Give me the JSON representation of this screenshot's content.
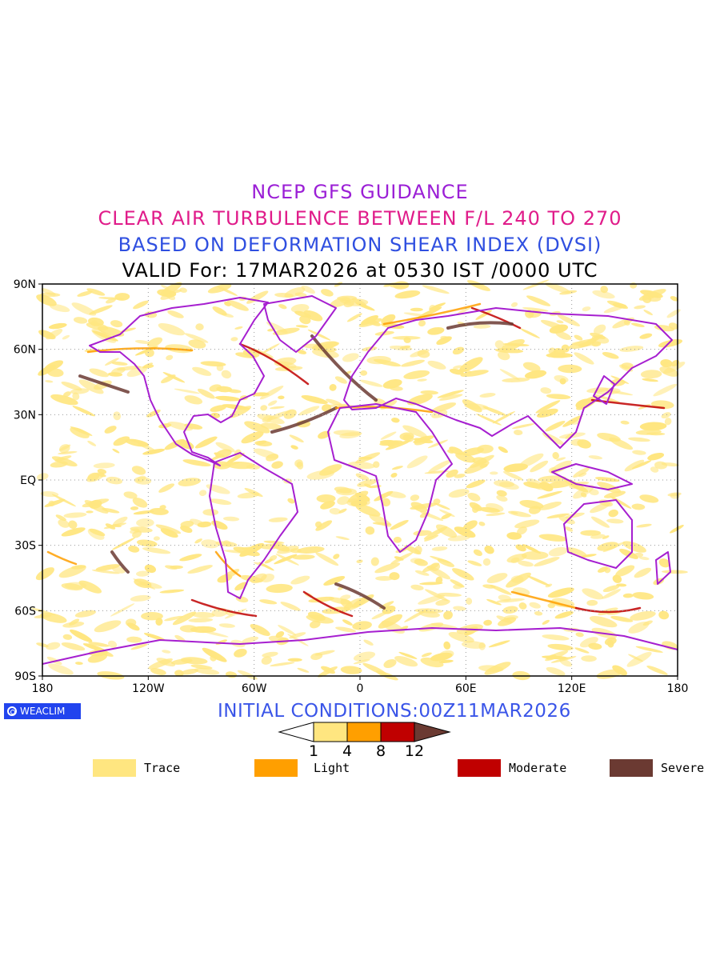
{
  "titles": {
    "line1": "NCEP GFS GUIDANCE",
    "line2": "CLEAR AIR TURBULENCE BETWEEN F/L 240 TO 270",
    "line3": "BASED ON DEFORMATION SHEAR INDEX (DVSI)",
    "line4": "VALID For: 17MAR2026 at 0530 IST /0000 UTC"
  },
  "colors": {
    "line1": "#9b1fd6",
    "line2": "#e01c8a",
    "line3": "#2f4fe0",
    "line4": "#000000",
    "init": "#3a55e8",
    "logo_bg": "#2244ee",
    "coast": "#a61fd0",
    "trace": "#ffe680",
    "light": "#ff9f00",
    "moderate": "#c00000",
    "severe": "#6b3a32"
  },
  "axes": {
    "lat_labels": [
      "90N",
      "60N",
      "30N",
      "EQ",
      "30S",
      "60S",
      "90S"
    ],
    "lon_labels": [
      "180",
      "120W",
      "60W",
      "0",
      "60E",
      "120E",
      "180"
    ]
  },
  "logo": {
    "text": "WEACLIM",
    "icon": "weaclim-logo-icon"
  },
  "init_conditions": "INITIAL CONDITIONS:00Z11MAR2026",
  "colorbar": {
    "ticks": [
      "1",
      "4",
      "8",
      "12"
    ]
  },
  "legend": [
    {
      "label": "Trace"
    },
    {
      "label": "Light"
    },
    {
      "label": "Moderate"
    },
    {
      "label": "Severe"
    }
  ]
}
